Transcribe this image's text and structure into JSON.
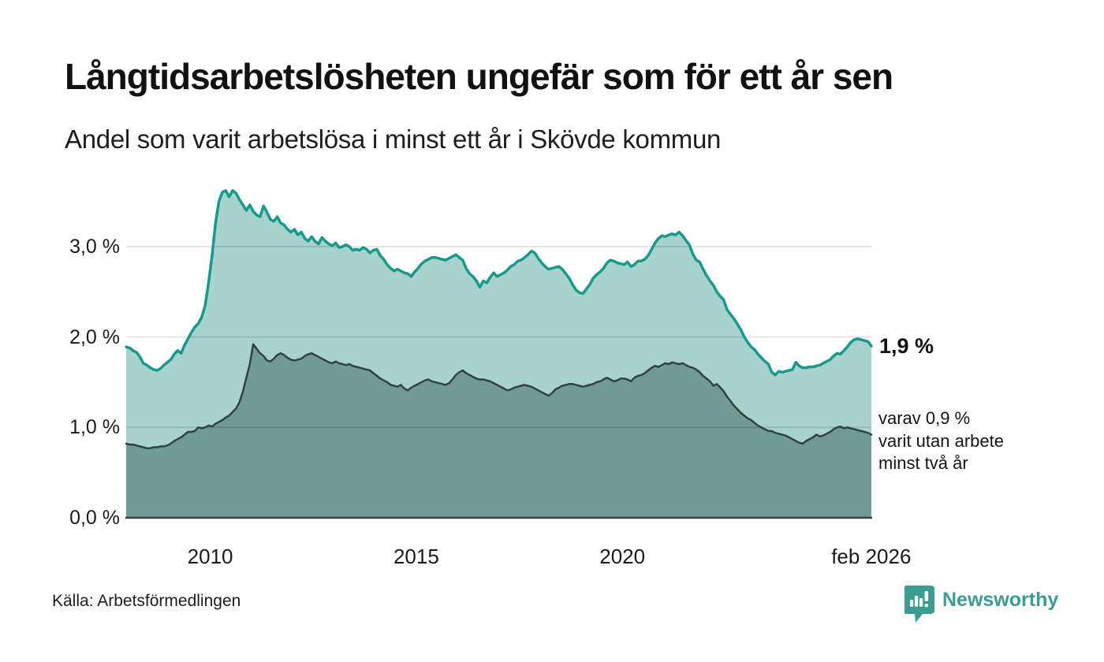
{
  "title": "Långtidsarbetslösheten ungefär som för ett år sen",
  "subtitle": "Andel som varit arbetslösa i minst ett år i Skövde kommun",
  "source": "Källa: Arbetsförmedlingen",
  "brand": {
    "name": "Newsworthy",
    "color": "#3a9c92",
    "icon": "newsworthy-pin-barchart-icon"
  },
  "annotations": {
    "latest_total_label": "1,9 %",
    "note_lines": [
      "varav 0,9 %",
      "varit utan arbete",
      "minst två år"
    ]
  },
  "chart_data": {
    "type": "area",
    "title": "Långtidsarbetslösheten ungefär som för ett år sen",
    "subtitle": "Andel som varit arbetslösa i minst ett år i Skövde kommun",
    "unit": "%",
    "x_domain": [
      2008.0,
      2026.0833
    ],
    "x_frequency": "monthly",
    "x_start": "2008-01",
    "x_end": "2026-02",
    "ylim": [
      0,
      3.75
    ],
    "grid": true,
    "y_ticks": [
      {
        "v": 0,
        "label": "0,0 %"
      },
      {
        "v": 1,
        "label": "1,0 %"
      },
      {
        "v": 2,
        "label": "2,0 %"
      },
      {
        "v": 3,
        "label": "3,0 %"
      }
    ],
    "x_ticks": [
      {
        "year": 2010.04,
        "label": "2010"
      },
      {
        "year": 2015.04,
        "label": "2015"
      },
      {
        "year": 2020.04,
        "label": "2020"
      },
      {
        "year": 2026.08,
        "label": "feb 2026"
      }
    ],
    "latest": {
      "total_at_least_one_year": 1.9,
      "at_least_two_years": 0.9
    },
    "series": [
      {
        "name": "Andel arbetslösa minst ett år",
        "line_color": "#18998c",
        "fill_color": "#a8d3cd",
        "line_width": 3.5,
        "values": [
          1.89,
          1.88,
          1.85,
          1.83,
          1.78,
          1.71,
          1.69,
          1.66,
          1.64,
          1.63,
          1.65,
          1.69,
          1.72,
          1.75,
          1.81,
          1.85,
          1.82,
          1.91,
          1.98,
          2.05,
          2.11,
          2.15,
          2.22,
          2.35,
          2.6,
          2.9,
          3.25,
          3.5,
          3.6,
          3.62,
          3.55,
          3.62,
          3.59,
          3.52,
          3.46,
          3.4,
          3.46,
          3.39,
          3.35,
          3.33,
          3.45,
          3.38,
          3.3,
          3.28,
          3.33,
          3.26,
          3.24,
          3.19,
          3.16,
          3.19,
          3.13,
          3.16,
          3.09,
          3.06,
          3.11,
          3.06,
          3.03,
          3.1,
          3.06,
          3.03,
          3.01,
          3.04,
          2.99,
          3.0,
          3.02,
          3.0,
          2.96,
          2.97,
          2.96,
          2.99,
          2.97,
          2.93,
          2.96,
          2.97,
          2.9,
          2.86,
          2.8,
          2.76,
          2.73,
          2.75,
          2.73,
          2.71,
          2.7,
          2.67,
          2.72,
          2.76,
          2.81,
          2.84,
          2.86,
          2.88,
          2.88,
          2.87,
          2.86,
          2.85,
          2.87,
          2.89,
          2.91,
          2.88,
          2.85,
          2.76,
          2.7,
          2.67,
          2.62,
          2.55,
          2.62,
          2.6,
          2.66,
          2.71,
          2.67,
          2.69,
          2.71,
          2.74,
          2.78,
          2.8,
          2.84,
          2.85,
          2.88,
          2.91,
          2.95,
          2.93,
          2.87,
          2.82,
          2.78,
          2.75,
          2.76,
          2.77,
          2.78,
          2.75,
          2.7,
          2.65,
          2.58,
          2.52,
          2.49,
          2.48,
          2.53,
          2.58,
          2.65,
          2.69,
          2.72,
          2.76,
          2.82,
          2.85,
          2.84,
          2.82,
          2.81,
          2.8,
          2.83,
          2.78,
          2.8,
          2.84,
          2.84,
          2.86,
          2.9,
          2.97,
          3.04,
          3.09,
          3.12,
          3.11,
          3.13,
          3.14,
          3.13,
          3.16,
          3.12,
          3.07,
          3.02,
          2.92,
          2.85,
          2.83,
          2.75,
          2.68,
          2.62,
          2.57,
          2.5,
          2.45,
          2.41,
          2.3,
          2.25,
          2.2,
          2.14,
          2.08,
          2.0,
          1.94,
          1.89,
          1.86,
          1.81,
          1.77,
          1.73,
          1.7,
          1.61,
          1.58,
          1.62,
          1.61,
          1.62,
          1.63,
          1.64,
          1.72,
          1.68,
          1.66,
          1.66,
          1.67,
          1.67,
          1.68,
          1.69,
          1.71,
          1.73,
          1.75,
          1.79,
          1.82,
          1.81,
          1.85,
          1.89,
          1.94,
          1.97,
          1.98,
          1.97,
          1.96,
          1.95,
          1.9
        ]
      },
      {
        "name": "Varav utan arbete minst två år",
        "line_color": "#32433f",
        "fill_color": "#6f9b94",
        "line_width": 2.5,
        "values": [
          0.82,
          0.81,
          0.81,
          0.8,
          0.79,
          0.78,
          0.77,
          0.77,
          0.78,
          0.78,
          0.79,
          0.79,
          0.8,
          0.82,
          0.85,
          0.87,
          0.89,
          0.92,
          0.95,
          0.95,
          0.96,
          1.0,
          0.99,
          1.0,
          1.02,
          1.01,
          1.04,
          1.06,
          1.08,
          1.11,
          1.13,
          1.17,
          1.21,
          1.28,
          1.4,
          1.55,
          1.7,
          1.92,
          1.87,
          1.82,
          1.79,
          1.74,
          1.73,
          1.76,
          1.8,
          1.82,
          1.8,
          1.77,
          1.75,
          1.74,
          1.75,
          1.76,
          1.79,
          1.81,
          1.82,
          1.8,
          1.78,
          1.76,
          1.74,
          1.72,
          1.71,
          1.73,
          1.71,
          1.7,
          1.69,
          1.7,
          1.68,
          1.67,
          1.66,
          1.65,
          1.64,
          1.63,
          1.6,
          1.57,
          1.54,
          1.52,
          1.5,
          1.47,
          1.46,
          1.45,
          1.47,
          1.43,
          1.41,
          1.44,
          1.46,
          1.48,
          1.5,
          1.52,
          1.53,
          1.51,
          1.5,
          1.49,
          1.48,
          1.47,
          1.49,
          1.53,
          1.58,
          1.61,
          1.63,
          1.6,
          1.58,
          1.56,
          1.54,
          1.53,
          1.53,
          1.52,
          1.51,
          1.49,
          1.47,
          1.45,
          1.43,
          1.41,
          1.42,
          1.44,
          1.45,
          1.46,
          1.47,
          1.46,
          1.45,
          1.43,
          1.41,
          1.39,
          1.37,
          1.35,
          1.38,
          1.42,
          1.44,
          1.46,
          1.47,
          1.48,
          1.48,
          1.47,
          1.46,
          1.45,
          1.46,
          1.47,
          1.48,
          1.5,
          1.51,
          1.53,
          1.55,
          1.53,
          1.51,
          1.52,
          1.54,
          1.54,
          1.53,
          1.51,
          1.55,
          1.57,
          1.58,
          1.6,
          1.63,
          1.66,
          1.68,
          1.67,
          1.69,
          1.71,
          1.7,
          1.72,
          1.71,
          1.7,
          1.71,
          1.69,
          1.67,
          1.66,
          1.64,
          1.61,
          1.57,
          1.54,
          1.51,
          1.46,
          1.48,
          1.44,
          1.4,
          1.34,
          1.29,
          1.24,
          1.2,
          1.16,
          1.13,
          1.1,
          1.08,
          1.05,
          1.02,
          1.0,
          0.98,
          0.96,
          0.96,
          0.94,
          0.93,
          0.92,
          0.91,
          0.89,
          0.87,
          0.85,
          0.83,
          0.82,
          0.85,
          0.87,
          0.89,
          0.92,
          0.9,
          0.91,
          0.93,
          0.95,
          0.98,
          1.0,
          1.01,
          0.99,
          1.0,
          0.99,
          0.98,
          0.97,
          0.96,
          0.95,
          0.94,
          0.92
        ]
      }
    ]
  }
}
